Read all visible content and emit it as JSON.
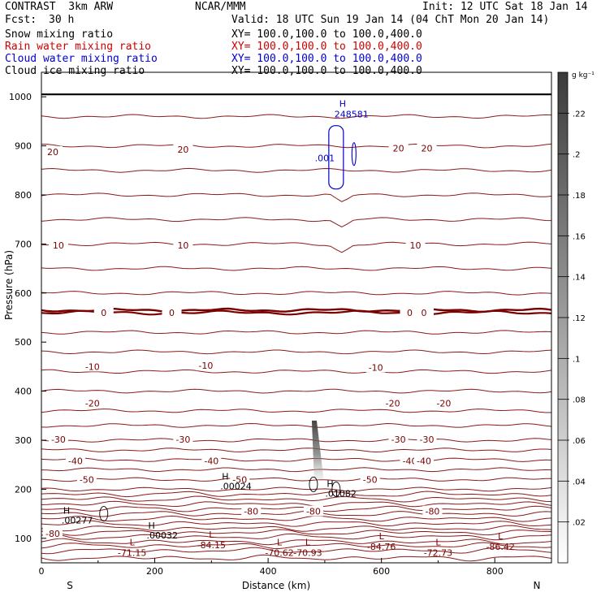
{
  "header": {
    "title": "CONTRAST  3km ARW",
    "fcst_label": "Fcst:",
    "fcst_value": "30 h",
    "center": "NCAR/MMM",
    "init": "Init: 12 UTC Sat 18 Jan 14",
    "valid": "Valid: 18 UTC Sun 19 Jan 14 (04 ChT Mon 20 Jan 14)"
  },
  "fields": [
    {
      "name": "Snow mixing ratio",
      "xy": "XY= 100.0,100.0 to 100.0,400.0",
      "color": "#000000"
    },
    {
      "name": "Rain water mixing ratio",
      "xy": "XY= 100.0,100.0 to 100.0,400.0",
      "color": "#d00000"
    },
    {
      "name": "Cloud water mixing ratio",
      "xy": "XY= 100.0,100.0 to 100.0,400.0",
      "color": "#0000cc"
    },
    {
      "name": "Cloud ice mixing ratio",
      "xy": "XY= 100.0,100.0 to 100.0,400.0",
      "color": "#000000"
    }
  ],
  "chart_data": {
    "type": "contour-cross-section",
    "xlabel": "Distance (km)",
    "ylabel": "Pressure (hPa)",
    "xlim": [
      0,
      900
    ],
    "ylim": [
      1050,
      50
    ],
    "x_ticks": [
      0,
      200,
      400,
      600,
      800
    ],
    "y_ticks": [
      100,
      200,
      300,
      400,
      500,
      600,
      700,
      800,
      900,
      1000
    ],
    "end_labels": {
      "left": "S",
      "right": "N"
    },
    "colorbar": {
      "unit": "g kg⁻¹",
      "ticks": [
        ".02",
        ".04",
        ".06",
        ".08",
        ".1",
        ".12",
        ".14",
        ".16",
        ".18",
        ".2",
        ".22"
      ],
      "min": 0,
      "max": 0.24
    },
    "temperature_contours": [
      {
        "label": "-80",
        "positions": [
          [
            20,
            110
          ],
          [
            370,
            155
          ],
          [
            480,
            155
          ],
          [
            690,
            155
          ]
        ]
      },
      {
        "label": "-50",
        "positions": [
          [
            80,
            220
          ],
          [
            350,
            220
          ],
          [
            580,
            220
          ]
        ]
      },
      {
        "label": "-40",
        "positions": [
          [
            60,
            258
          ],
          [
            300,
            258
          ],
          [
            650,
            258
          ],
          [
            675,
            258
          ]
        ]
      },
      {
        "label": "-30",
        "positions": [
          [
            30,
            302
          ],
          [
            250,
            302
          ],
          [
            630,
            302
          ],
          [
            680,
            302
          ]
        ]
      },
      {
        "label": "-20",
        "positions": [
          [
            90,
            375
          ],
          [
            620,
            375
          ],
          [
            710,
            375
          ]
        ]
      },
      {
        "label": "-10",
        "positions": [
          [
            90,
            450
          ],
          [
            290,
            452
          ],
          [
            590,
            448
          ]
        ]
      },
      {
        "label": "0",
        "positions": [
          [
            110,
            560
          ],
          [
            230,
            560
          ],
          [
            650,
            560
          ],
          [
            675,
            560
          ]
        ]
      },
      {
        "label": "10",
        "positions": [
          [
            30,
            697
          ],
          [
            250,
            697
          ],
          [
            660,
            697
          ]
        ]
      },
      {
        "label": "20",
        "positions": [
          [
            20,
            888
          ],
          [
            250,
            893
          ],
          [
            630,
            895
          ],
          [
            680,
            895
          ]
        ]
      }
    ],
    "temperature_levels_hpa": [
      60,
      75,
      85,
      93,
      103,
      112,
      120,
      130,
      140,
      150,
      160,
      170,
      180,
      190,
      200,
      220,
      240,
      260,
      280,
      300,
      330,
      360,
      400,
      440,
      480,
      520,
      560,
      600,
      650,
      700,
      750,
      800,
      850,
      900,
      960
    ],
    "extrema_labels": [
      {
        "type": "min",
        "label": "-71.15",
        "x": 160,
        "p": 72
      },
      {
        "type": "min",
        "label": "-84.15",
        "x": 300,
        "p": 88
      },
      {
        "type": "min",
        "label": "-70.62",
        "x": 420,
        "p": 72
      },
      {
        "type": "min",
        "label": "-70.93",
        "x": 470,
        "p": 72
      },
      {
        "type": "min",
        "label": "-84.76",
        "x": 600,
        "p": 85
      },
      {
        "type": "min",
        "label": "-72.73",
        "x": 700,
        "p": 72
      },
      {
        "type": "min",
        "label": "-86.42",
        "x": 810,
        "p": 85
      }
    ],
    "snow_maxima": [
      {
        "label": ".00277",
        "x": 50,
        "p": 140
      },
      {
        "label": ".00032",
        "x": 200,
        "p": 110
      },
      {
        "label": ".00024",
        "x": 330,
        "p": 210
      },
      {
        "label": ".01082",
        "x": 515,
        "p": 195
      }
    ],
    "ice_shading": {
      "x_top": 490,
      "p_top": 215,
      "x_bottom": 480,
      "p_bottom": 340,
      "peak_gkg": 0.2
    },
    "cloud_water": {
      "contour_label": ".001",
      "contour_x": 520,
      "contour_p": 875,
      "max_label": "248581",
      "max_x": 540,
      "max_p": 960
    },
    "freezing_level_hpa": 565,
    "surface_level_hpa": 1005
  }
}
